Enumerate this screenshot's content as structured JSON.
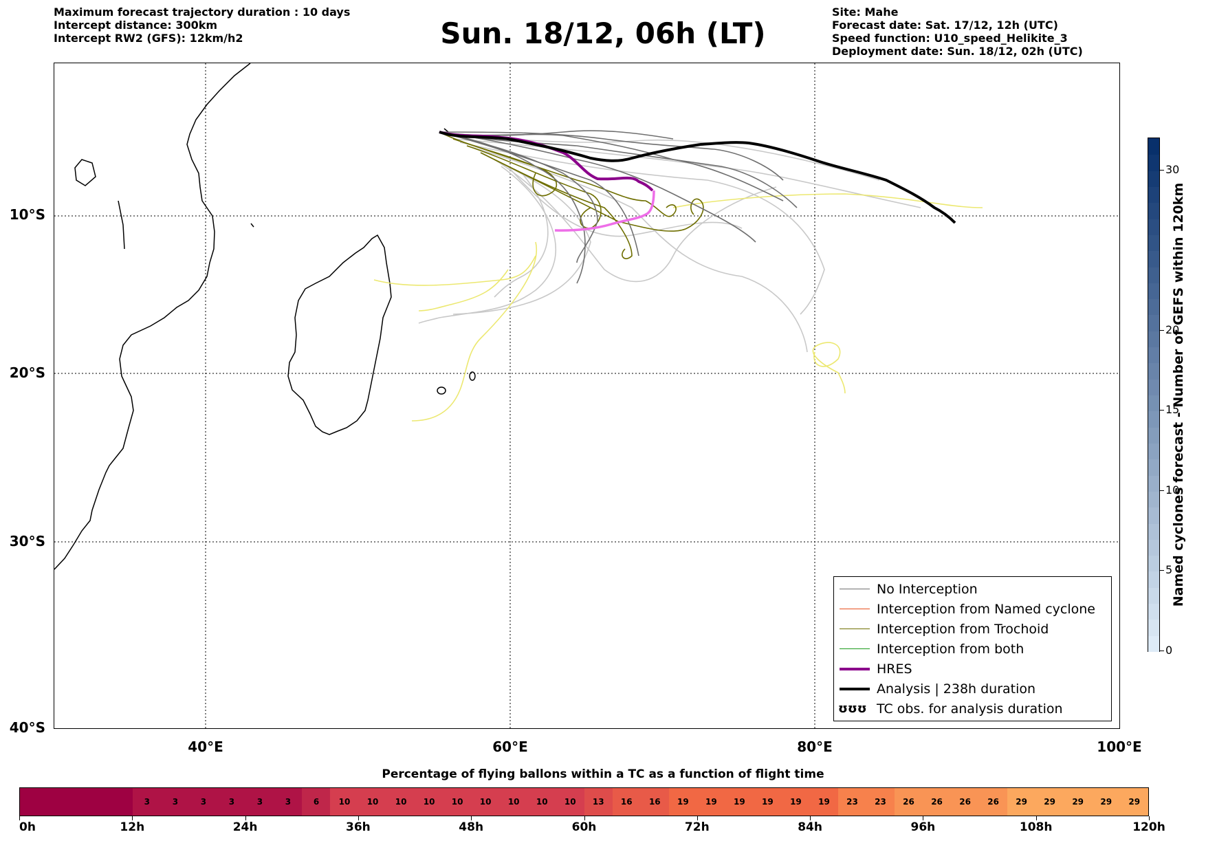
{
  "header": {
    "left_lines": [
      "Maximum forecast trajectory duration : 10 days",
      "Intercept distance: 300km",
      "Intercept RW2 (GFS):  12km/h2"
    ],
    "title": "Sun. 18/12, 06h (LT)",
    "right_lines": [
      "Site: Mahe",
      "Forecast date: Sat. 17/12, 12h (UTC)",
      "Speed function: U10_speed_Helikite_3",
      "Deployment date: Sun. 18/12, 02h (UTC)"
    ]
  },
  "map": {
    "lat_labels": [
      "10°S",
      "20°S",
      "30°S",
      "40°S"
    ],
    "lon_labels": [
      "40°E",
      "60°E",
      "80°E",
      "100°E"
    ],
    "colors": {
      "no_interception": "#6f6f6f",
      "no_interception_light": "#c8c8c8",
      "named_cyclone": "#e8501e",
      "trochoid": "#6e6e00",
      "trochoid_light": "#ece870",
      "both": "#1a9a1a",
      "hres": "#8b008b",
      "hres_light": "#ee6ee8",
      "analysis": "#000000"
    }
  },
  "legend": {
    "items": [
      {
        "label": "No Interception",
        "color": "#6f6f6f",
        "width": 1.5
      },
      {
        "label": "Interception from Named cyclone",
        "color": "#e8501e",
        "width": 1.5
      },
      {
        "label": "Interception from Trochoid",
        "color": "#6e6e00",
        "width": 1.5
      },
      {
        "label": "Interception from both",
        "color": "#1a9a1a",
        "width": 1.5
      },
      {
        "label": "HRES",
        "color": "#8b008b",
        "width": 4
      },
      {
        "label": "Analysis | 238h duration",
        "color": "#000000",
        "width": 4
      }
    ],
    "tc_symbol": "ʊʊʊ",
    "tc_label": "TC obs. for analysis duration"
  },
  "colorbar": {
    "title": "Named cyclones forecast - Number of GEFS within 120km",
    "ticks": [
      "0",
      "5",
      "10",
      "15",
      "20",
      "30"
    ],
    "max": 32
  },
  "flight_bar": {
    "title": "Percentage of flying ballons within a TC as a function of flight time",
    "hours": [
      "0h",
      "12h",
      "24h",
      "36h",
      "48h",
      "60h",
      "72h",
      "84h",
      "96h",
      "108h",
      "120h"
    ],
    "values": [
      "",
      "",
      "",
      "",
      "3",
      "3",
      "3",
      "3",
      "3",
      "3",
      "6",
      "10",
      "10",
      "10",
      "10",
      "10",
      "10",
      "10",
      "10",
      "10",
      "13",
      "16",
      "16",
      "19",
      "19",
      "19",
      "19",
      "19",
      "19",
      "23",
      "23",
      "26",
      "26",
      "26",
      "26",
      "29",
      "29",
      "29",
      "29",
      "29"
    ]
  }
}
